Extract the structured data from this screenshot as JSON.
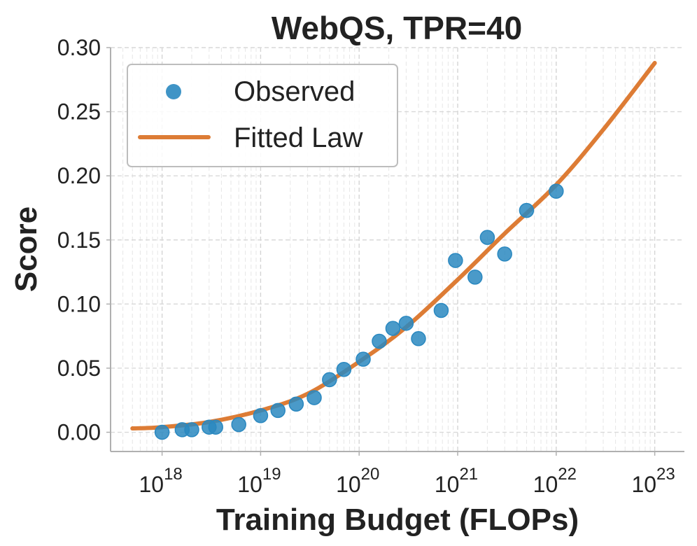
{
  "chart_data": {
    "type": "scatter",
    "title": "WebQS, TPR=40",
    "xlabel": "Training Budget (FLOPs)",
    "ylabel": "Score",
    "x_scale": "log",
    "xlim": [
      3e+17,
      2e+23
    ],
    "ylim": [
      -0.015,
      0.3
    ],
    "x_ticks": [
      {
        "base": "10",
        "exp": "18"
      },
      {
        "base": "10",
        "exp": "19"
      },
      {
        "base": "10",
        "exp": "20"
      },
      {
        "base": "10",
        "exp": "21"
      },
      {
        "base": "10",
        "exp": "22"
      },
      {
        "base": "10",
        "exp": "23"
      }
    ],
    "y_ticks": [
      "0.00",
      "0.05",
      "0.10",
      "0.15",
      "0.20",
      "0.25",
      "0.30"
    ],
    "grid": true,
    "legend": {
      "placement": "top-left",
      "entries": [
        {
          "label": "Observed",
          "marker": "circle",
          "color": "#2a88c0"
        },
        {
          "label": "Fitted Law",
          "marker": "line",
          "color": "#dd7c35"
        }
      ]
    },
    "series": [
      {
        "name": "Observed",
        "kind": "scatter",
        "color": "#2a88c0",
        "points": [
          {
            "x": 1e+18,
            "y": 0.0
          },
          {
            "x": 1.6e+18,
            "y": 0.002
          },
          {
            "x": 2e+18,
            "y": 0.002
          },
          {
            "x": 3e+18,
            "y": 0.004
          },
          {
            "x": 3.5e+18,
            "y": 0.004
          },
          {
            "x": 6e+18,
            "y": 0.006
          },
          {
            "x": 1e+19,
            "y": 0.013
          },
          {
            "x": 1.5e+19,
            "y": 0.017
          },
          {
            "x": 2.3e+19,
            "y": 0.022
          },
          {
            "x": 3.5e+19,
            "y": 0.027
          },
          {
            "x": 5e+19,
            "y": 0.041
          },
          {
            "x": 7e+19,
            "y": 0.049
          },
          {
            "x": 1.1e+20,
            "y": 0.057
          },
          {
            "x": 1.6e+20,
            "y": 0.071
          },
          {
            "x": 2.2e+20,
            "y": 0.081
          },
          {
            "x": 3e+20,
            "y": 0.085
          },
          {
            "x": 4e+20,
            "y": 0.073
          },
          {
            "x": 6.8e+20,
            "y": 0.095
          },
          {
            "x": 9.5e+20,
            "y": 0.134
          },
          {
            "x": 1.5e+21,
            "y": 0.121
          },
          {
            "x": 2e+21,
            "y": 0.152
          },
          {
            "x": 3e+21,
            "y": 0.139
          },
          {
            "x": 5e+21,
            "y": 0.173
          },
          {
            "x": 1e+22,
            "y": 0.188
          }
        ]
      },
      {
        "name": "Fitted Law",
        "kind": "line",
        "color": "#dd7c35",
        "points": [
          {
            "x": 5e+17,
            "y": 0.003
          },
          {
            "x": 1e+18,
            "y": 0.004
          },
          {
            "x": 3e+18,
            "y": 0.008
          },
          {
            "x": 1e+19,
            "y": 0.017
          },
          {
            "x": 3e+19,
            "y": 0.03
          },
          {
            "x": 1e+20,
            "y": 0.055
          },
          {
            "x": 3e+20,
            "y": 0.082
          },
          {
            "x": 1e+21,
            "y": 0.119
          },
          {
            "x": 3e+21,
            "y": 0.155
          },
          {
            "x": 1e+22,
            "y": 0.193
          },
          {
            "x": 3e+22,
            "y": 0.236
          },
          {
            "x": 1e+23,
            "y": 0.288
          }
        ]
      }
    ]
  }
}
